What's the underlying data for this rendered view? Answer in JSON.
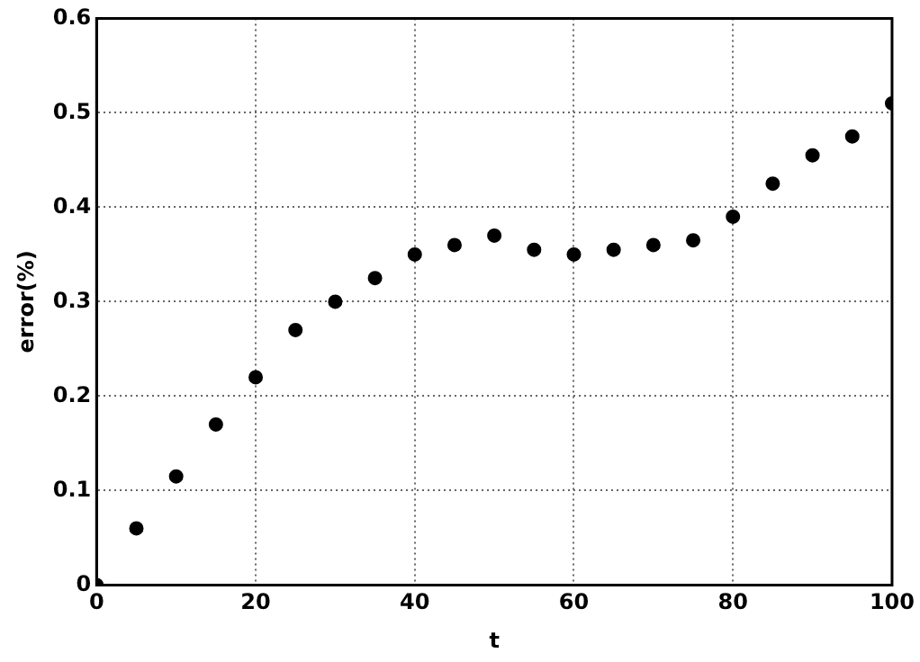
{
  "chart_data": {
    "type": "scatter",
    "xlabel": "t",
    "ylabel": "error(%)",
    "x": [
      0,
      5,
      10,
      15,
      20,
      25,
      30,
      35,
      40,
      45,
      50,
      55,
      60,
      65,
      70,
      75,
      80,
      85,
      90,
      95,
      100
    ],
    "series": [
      {
        "color": "#000000",
        "values": [
          0,
          0.06,
          0.115,
          0.17,
          0.22,
          0.27,
          0.3,
          0.325,
          0.35,
          0.36,
          0.37,
          0.355,
          0.35,
          0.355,
          0.36,
          0.365,
          0.39,
          0.425,
          0.455,
          0.475,
          0.51
        ]
      }
    ],
    "xlim": [
      0,
      100
    ],
    "xticks": [
      0,
      20,
      40,
      60,
      80,
      100
    ],
    "ylim": [
      0,
      0.6
    ],
    "yticks": [
      0,
      0.1,
      0.2,
      0.3,
      0.4,
      0.5,
      0.6
    ],
    "grid": true,
    "marker": "circle"
  }
}
